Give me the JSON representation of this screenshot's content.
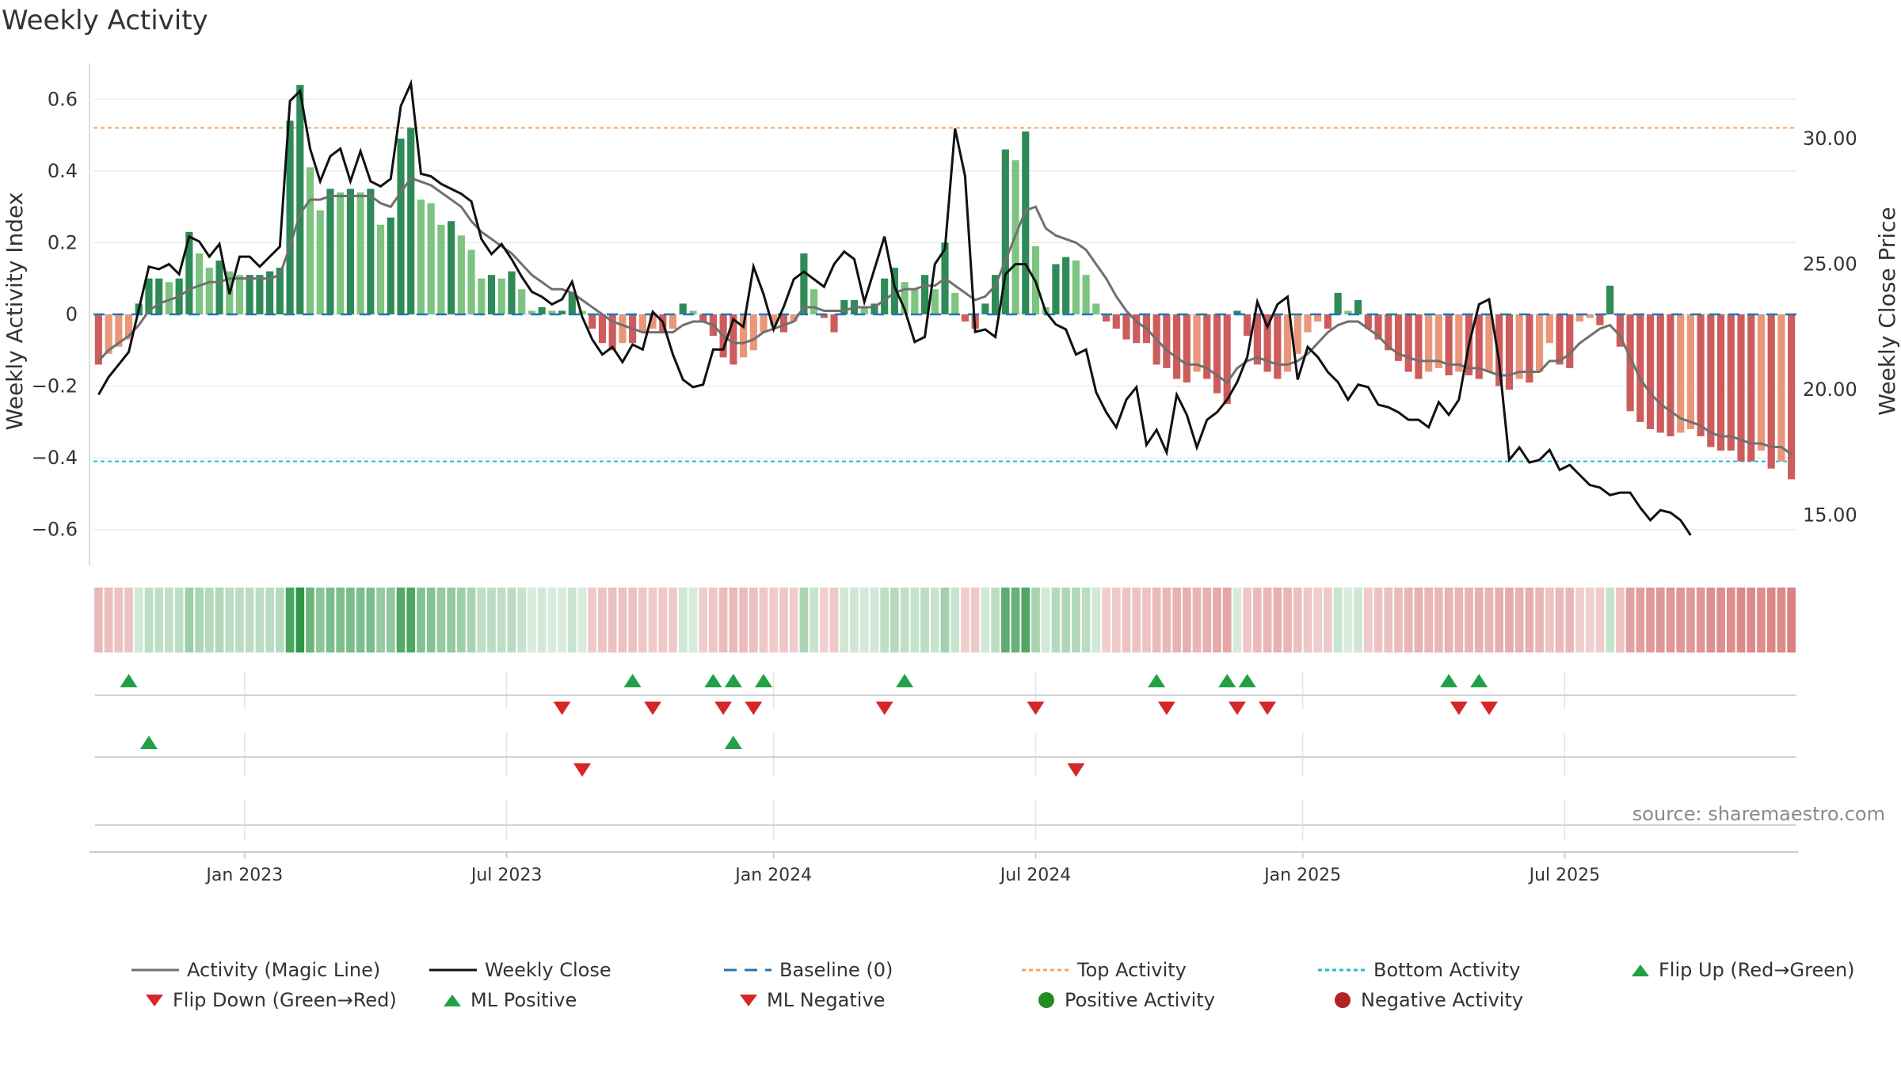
{
  "chart_data": {
    "type": "bar",
    "title": "Weekly Activity",
    "ylabel": "Weekly Activity Index",
    "ylabel_right": "Weekly Close Price",
    "ylim": [
      -0.7,
      0.7
    ],
    "ylim_right": [
      13,
      33
    ],
    "yticks": [
      0.6,
      0.4,
      0.2,
      0,
      -0.2,
      -0.4,
      -0.6
    ],
    "ytick_labels": [
      "0.6",
      "0.4",
      "0.2",
      "0",
      "−0.2",
      "−0.4",
      "−0.6"
    ],
    "yticks_right": [
      30,
      25,
      20,
      15
    ],
    "ytick_labels_right": [
      "30.00",
      "25.00",
      "20.00",
      "15.00"
    ],
    "xticks": [
      "Jan 2023",
      "Jul 2023",
      "Jan 2024",
      "Jul 2024",
      "Jan 2025",
      "Jul 2025"
    ],
    "xtick_weeks": [
      15,
      41,
      67.5,
      93.5,
      120,
      146
    ],
    "top_activity": 0.52,
    "bottom_activity": -0.41,
    "activity_index": [
      -0.14,
      -0.11,
      -0.09,
      -0.07,
      0.03,
      0.1,
      0.1,
      0.09,
      0.1,
      0.23,
      0.17,
      0.13,
      0.15,
      0.12,
      0.11,
      0.11,
      0.11,
      0.12,
      0.13,
      0.54,
      0.64,
      0.41,
      0.29,
      0.35,
      0.34,
      0.35,
      0.34,
      0.35,
      0.25,
      0.27,
      0.49,
      0.52,
      0.32,
      0.31,
      0.25,
      0.26,
      0.22,
      0.18,
      0.1,
      0.11,
      0.1,
      0.12,
      0.07,
      0.01,
      0.02,
      0.01,
      0.01,
      0.06,
      0.01,
      -0.04,
      -0.08,
      -0.1,
      -0.08,
      -0.08,
      -0.05,
      -0.04,
      -0.05,
      -0.04,
      0.03,
      0.01,
      -0.02,
      -0.06,
      -0.12,
      -0.14,
      -0.12,
      -0.1,
      -0.05,
      -0.03,
      -0.05,
      -0.02,
      0.17,
      0.07,
      -0.01,
      -0.05,
      0.04,
      0.04,
      0.02,
      0.03,
      0.1,
      0.13,
      0.09,
      0.07,
      0.11,
      0.07,
      0.2,
      0.06,
      -0.02,
      -0.04,
      0.03,
      0.11,
      0.46,
      0.43,
      0.51,
      0.19,
      0.02,
      0.14,
      0.16,
      0.15,
      0.11,
      0.03,
      -0.02,
      -0.04,
      -0.07,
      -0.08,
      -0.08,
      -0.14,
      -0.15,
      -0.18,
      -0.19,
      -0.16,
      -0.18,
      -0.22,
      -0.25,
      0.01,
      -0.06,
      -0.14,
      -0.16,
      -0.18,
      -0.16,
      -0.11,
      -0.05,
      -0.02,
      -0.04,
      0.06,
      0.01,
      0.04,
      -0.04,
      -0.07,
      -0.1,
      -0.13,
      -0.16,
      -0.18,
      -0.16,
      -0.15,
      -0.17,
      -0.16,
      -0.17,
      -0.18,
      -0.16,
      -0.2,
      -0.21,
      -0.18,
      -0.19,
      -0.16,
      -0.08,
      -0.14,
      -0.15,
      -0.02,
      -0.01,
      -0.03,
      0.08,
      -0.09,
      -0.27,
      -0.3,
      -0.32,
      -0.33,
      -0.34,
      -0.33,
      -0.32,
      -0.34,
      -0.37,
      -0.38,
      -0.38,
      -0.41,
      -0.41,
      -0.38,
      -0.43,
      -0.41,
      -0.46
    ],
    "magic_line": [
      -0.13,
      -0.1,
      -0.08,
      -0.06,
      -0.03,
      0.01,
      0.03,
      0.04,
      0.05,
      0.07,
      0.08,
      0.09,
      0.09,
      0.1,
      0.1,
      0.1,
      0.1,
      0.1,
      0.11,
      0.19,
      0.28,
      0.32,
      0.32,
      0.33,
      0.33,
      0.33,
      0.33,
      0.33,
      0.31,
      0.3,
      0.34,
      0.38,
      0.37,
      0.36,
      0.34,
      0.32,
      0.3,
      0.26,
      0.23,
      0.21,
      0.19,
      0.17,
      0.14,
      0.11,
      0.09,
      0.07,
      0.07,
      0.06,
      0.04,
      0.02,
      0.0,
      -0.02,
      -0.03,
      -0.04,
      -0.05,
      -0.05,
      -0.05,
      -0.05,
      -0.03,
      -0.02,
      -0.02,
      -0.03,
      -0.06,
      -0.08,
      -0.08,
      -0.07,
      -0.05,
      -0.04,
      -0.03,
      -0.02,
      0.02,
      0.02,
      0.01,
      0.01,
      0.01,
      0.02,
      0.02,
      0.02,
      0.04,
      0.06,
      0.07,
      0.07,
      0.08,
      0.08,
      0.1,
      0.08,
      0.06,
      0.04,
      0.05,
      0.08,
      0.15,
      0.22,
      0.29,
      0.3,
      0.24,
      0.22,
      0.21,
      0.2,
      0.18,
      0.14,
      0.1,
      0.05,
      0.01,
      -0.02,
      -0.04,
      -0.07,
      -0.1,
      -0.12,
      -0.14,
      -0.14,
      -0.15,
      -0.17,
      -0.19,
      -0.15,
      -0.13,
      -0.12,
      -0.13,
      -0.14,
      -0.14,
      -0.13,
      -0.11,
      -0.08,
      -0.05,
      -0.03,
      -0.02,
      -0.02,
      -0.04,
      -0.06,
      -0.09,
      -0.11,
      -0.12,
      -0.13,
      -0.13,
      -0.13,
      -0.14,
      -0.14,
      -0.15,
      -0.15,
      -0.16,
      -0.17,
      -0.17,
      -0.16,
      -0.16,
      -0.16,
      -0.13,
      -0.13,
      -0.11,
      -0.08,
      -0.06,
      -0.04,
      -0.03,
      -0.06,
      -0.12,
      -0.18,
      -0.22,
      -0.25,
      -0.27,
      -0.29,
      -0.3,
      -0.31,
      -0.33,
      -0.34,
      -0.34,
      -0.35,
      -0.36,
      -0.36,
      -0.37,
      -0.37,
      -0.39
    ],
    "weekly_close": [
      19.8,
      20.5,
      21.0,
      21.5,
      23.2,
      24.9,
      24.8,
      25.0,
      24.6,
      26.1,
      25.9,
      25.3,
      25.8,
      23.8,
      25.3,
      25.3,
      24.9,
      25.3,
      25.7,
      31.5,
      31.9,
      29.6,
      28.3,
      29.3,
      29.6,
      28.3,
      29.5,
      28.3,
      28.1,
      28.4,
      31.3,
      32.2,
      28.6,
      28.5,
      28.2,
      28.0,
      27.8,
      27.5,
      26.0,
      25.4,
      25.8,
      25.2,
      24.5,
      23.9,
      23.7,
      23.4,
      23.6,
      24.3,
      22.9,
      22.0,
      21.4,
      21.7,
      21.1,
      21.8,
      21.6,
      23.1,
      22.7,
      21.4,
      20.4,
      20.1,
      20.2,
      21.6,
      21.6,
      22.8,
      22.5,
      24.9,
      23.8,
      22.4,
      23.3,
      24.4,
      24.7,
      24.4,
      24.1,
      25.0,
      25.5,
      25.2,
      23.5,
      24.8,
      26.1,
      24.1,
      23.2,
      21.9,
      22.1,
      25.0,
      25.6,
      30.4,
      28.5,
      22.3,
      22.4,
      22.1,
      24.6,
      25.0,
      25.0,
      24.3,
      23.1,
      22.6,
      22.4,
      21.4,
      21.6,
      19.9,
      19.1,
      18.5,
      19.6,
      20.1,
      17.8,
      18.4,
      17.5,
      19.8,
      19.0,
      17.7,
      18.8,
      19.1,
      19.6,
      20.3,
      21.3,
      23.5,
      22.5,
      23.4,
      23.7,
      20.4,
      21.7,
      21.3,
      20.7,
      20.3,
      19.6,
      20.2,
      20.1,
      19.4,
      19.3,
      19.1,
      18.8,
      18.8,
      18.5,
      19.5,
      19.0,
      19.6,
      21.8,
      23.4,
      23.6,
      21.1,
      17.2,
      17.7,
      17.1,
      17.2,
      17.6,
      16.8,
      17.0,
      16.6,
      16.2,
      16.1,
      15.8,
      15.9,
      15.9,
      15.3,
      14.8,
      15.2,
      15.1,
      14.8,
      14.2
    ],
    "flip_up_weeks": [
      3,
      53,
      61,
      63,
      66,
      80,
      105,
      112,
      114,
      134,
      137
    ],
    "flip_down_weeks": [
      46,
      55,
      62,
      65,
      78,
      93,
      106,
      113,
      116,
      135,
      138
    ],
    "ml_positive_weeks": [
      5,
      63
    ],
    "ml_negative_weeks": [
      48,
      97
    ],
    "legend": [
      "Activity (Magic Line)",
      "Weekly Close",
      "Baseline (0)",
      "Top Activity",
      "Bottom Activity",
      "Flip Up (Red→Green)",
      "Flip Down (Green→Red)",
      "ML Positive",
      "ML Negative",
      "Positive Activity",
      "Negative Activity"
    ]
  },
  "colors": {
    "green_dark": "#2e8b57",
    "green_light": "#7cc47f",
    "red_dark": "#cd5c5c",
    "red_light": "#e9967a",
    "magic_line": "#707070",
    "close_line": "#111111",
    "baseline": "#1f77b4",
    "top_line": "#f4a460",
    "bottom_line": "#17becf",
    "marker_up": "#22a046",
    "marker_down": "#d62728",
    "positive_dot": "#228b22",
    "negative_dot": "#b22222"
  },
  "source": "source: sharemaestro.com"
}
